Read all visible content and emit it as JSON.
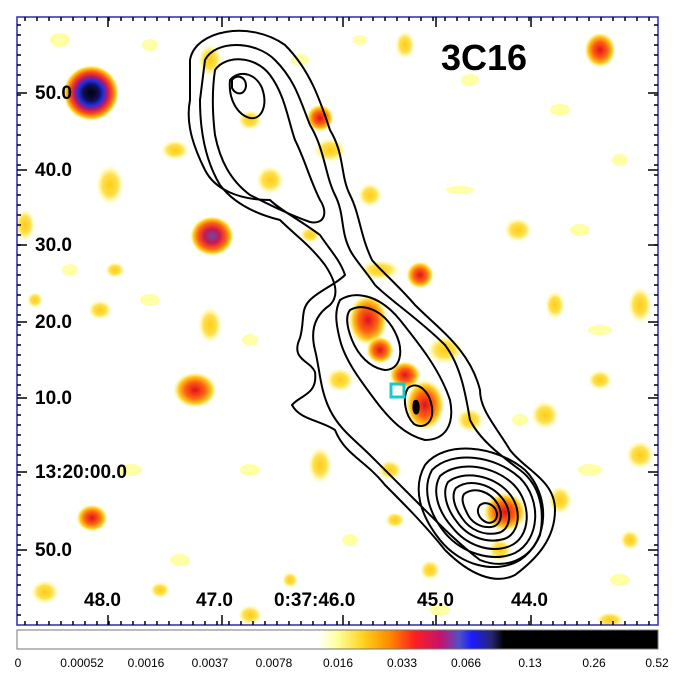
{
  "image": {
    "title": "3C16",
    "description_scene": "X-ray image with radio contours overlaid",
    "colormap_colors": [
      "#ffffff",
      "#ffff80",
      "#ffd21e",
      "#ff8c00",
      "#ff2020",
      "#c8106c",
      "#5050c8",
      "#1b1bff",
      "#262673",
      "#000000"
    ],
    "marker_color": "#19c8d2",
    "contour_color": "#000000",
    "frame_color": "#2b2bb0"
  },
  "axes": {
    "dec_labels": [
      "50.0",
      "40.0",
      "30.0",
      "20.0",
      "10.0",
      "13:20:00.0",
      "50.0"
    ],
    "ra_labels": [
      "48.0",
      "47.0",
      "0:37:46.0",
      "45.0",
      "44.0"
    ]
  },
  "colorbar": {
    "tick_labels": [
      "0",
      "0.00052",
      "0.0016",
      "0.0037",
      "0.0078",
      "0.016",
      "0.033",
      "0.066",
      "0.13",
      "0.26",
      "0.52"
    ]
  }
}
